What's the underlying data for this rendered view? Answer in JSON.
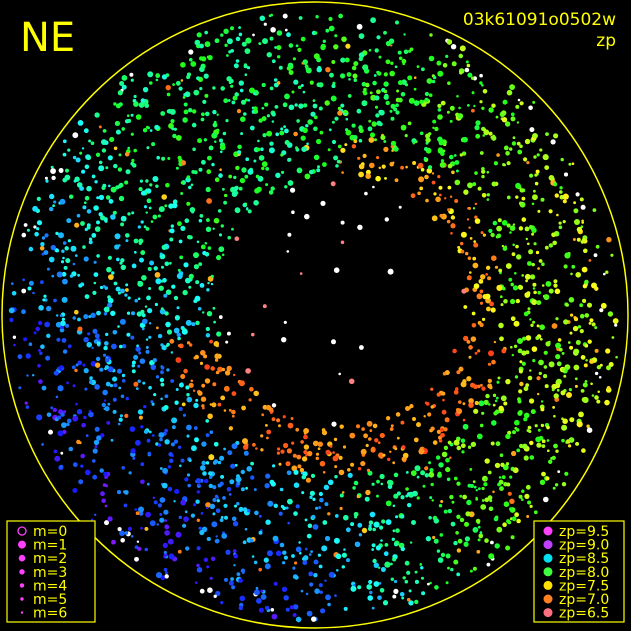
{
  "corner_label": "NE",
  "image_id": "03k61091o0502w",
  "quantity": "zp",
  "magnitude_legend": [
    "m=0",
    "m=1",
    "m=2",
    "m=3",
    "m=4",
    "m=5",
    "m=6"
  ],
  "zp_legend": [
    {
      "label": "zp=9.5",
      "color": "#ff40ff"
    },
    {
      "label": "zp=9.0",
      "color": "#c040ff"
    },
    {
      "label": "zp=8.5",
      "color": "#00e0f0"
    },
    {
      "label": "zp=8.0",
      "color": "#40ff40"
    },
    {
      "label": "zp=7.5",
      "color": "#ffe000"
    },
    {
      "label": "zp=7.0",
      "color": "#ff8020"
    },
    {
      "label": "zp=6.5",
      "color": "#ff7080"
    }
  ]
}
